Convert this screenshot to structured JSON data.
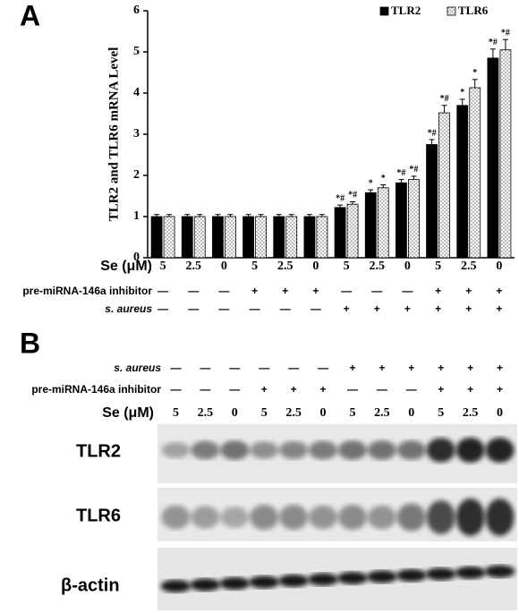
{
  "panel_a_label": "A",
  "panel_b_label": "B",
  "chart_data": {
    "type": "bar",
    "y_label": "TLR2 and TLR6 mRNA Level",
    "categories": [
      "5",
      "2.5",
      "0",
      "5",
      "2.5",
      "0",
      "5",
      "2.5",
      "0",
      "5",
      "2.5",
      "0"
    ],
    "series": [
      {
        "name": "TLR2",
        "color": "#000000",
        "pattern": null,
        "values": [
          1,
          1,
          1,
          1,
          1,
          1,
          1.22,
          1.58,
          1.82,
          2.75,
          3.7,
          4.85
        ],
        "errors": [
          0.05,
          0.05,
          0.05,
          0.05,
          0.05,
          0.05,
          0.06,
          0.07,
          0.08,
          0.12,
          0.15,
          0.22
        ],
        "annotations": [
          null,
          null,
          null,
          null,
          null,
          null,
          "*#",
          "*",
          "*#",
          "*#",
          "*",
          "*#"
        ]
      },
      {
        "name": "TLR6",
        "color": "#ffffff",
        "pattern": "dots",
        "values": [
          1,
          1,
          1,
          1,
          1,
          1,
          1.3,
          1.7,
          1.9,
          3.52,
          4.13,
          5.05
        ],
        "errors": [
          0.05,
          0.05,
          0.05,
          0.05,
          0.05,
          0.05,
          0.06,
          0.07,
          0.08,
          0.18,
          0.2,
          0.25
        ],
        "annotations": [
          null,
          null,
          null,
          null,
          null,
          null,
          "*#",
          "*",
          "*#",
          "*#",
          "*",
          "*#"
        ]
      }
    ],
    "ylim": [
      0,
      6
    ],
    "yticks": [
      0,
      1,
      2,
      3,
      4,
      5,
      6
    ],
    "legend": "top-right"
  },
  "treatments": {
    "se_label": "Se (μM)",
    "inhibitor_label": "pre-miRNA-146a inhibitor",
    "aureus_label": "s. aureus",
    "inhibitor": [
      "—",
      "—",
      "—",
      "+",
      "+",
      "+",
      "—",
      "—",
      "—",
      "+",
      "+",
      "+"
    ],
    "aureus": [
      "—",
      "—",
      "—",
      "—",
      "—",
      "—",
      "+",
      "+",
      "+",
      "+",
      "+",
      "+"
    ]
  },
  "blot": {
    "rows": [
      "TLR2",
      "TLR6",
      "β-actin"
    ]
  }
}
